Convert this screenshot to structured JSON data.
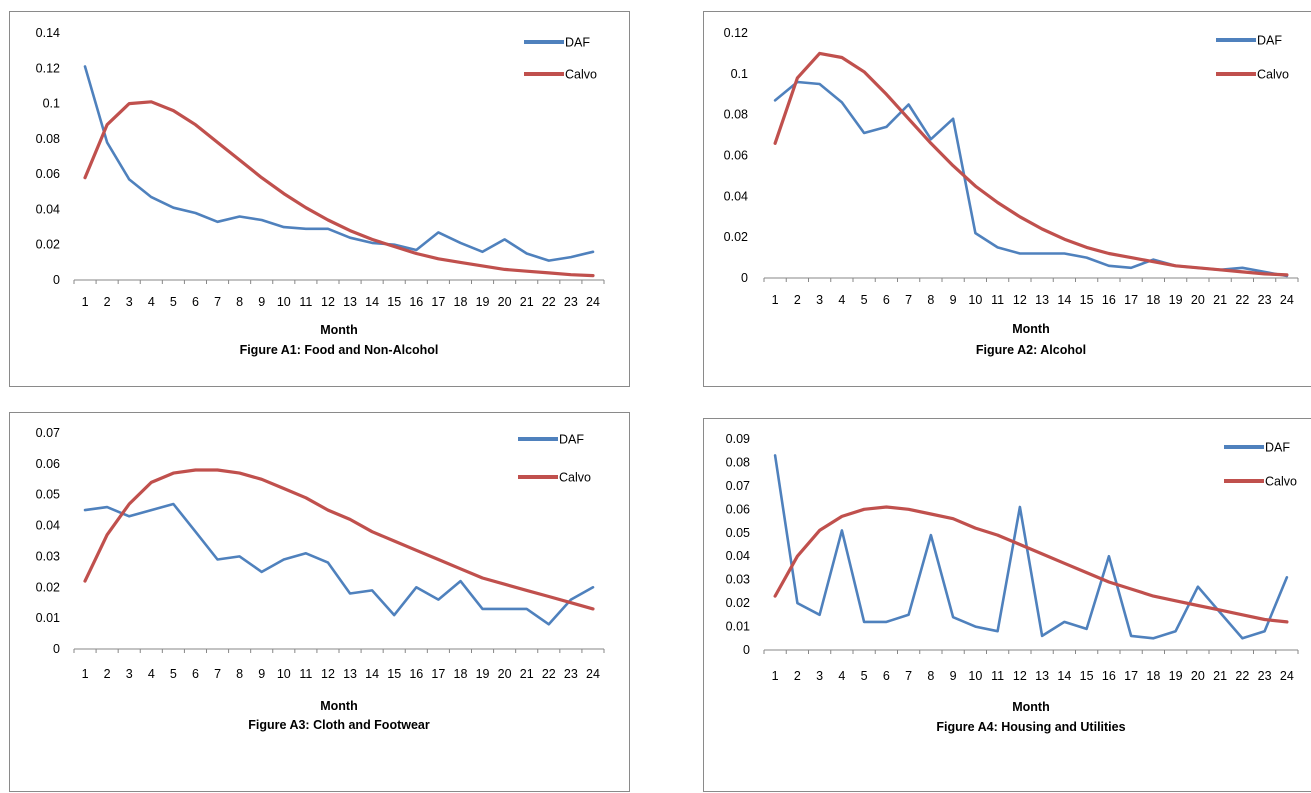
{
  "chart_data": [
    {
      "type": "line",
      "caption": "Figure A1: Food and Non-Alcohol",
      "xlabel": "Month",
      "ylabel": "",
      "categories": [
        "1",
        "2",
        "3",
        "4",
        "5",
        "6",
        "7",
        "8",
        "9",
        "10",
        "11",
        "12",
        "13",
        "14",
        "15",
        "16",
        "17",
        "18",
        "19",
        "20",
        "21",
        "22",
        "23",
        "24"
      ],
      "yticks": [
        "0",
        "0.02",
        "0.04",
        "0.06",
        "0.08",
        "0.1",
        "0.12",
        "0.14"
      ],
      "ylim": [
        0,
        0.14
      ],
      "grid": false,
      "legend_position": "top-right",
      "series": [
        {
          "name": "DAF",
          "color": "#4f81bd",
          "values": [
            0.121,
            0.078,
            0.057,
            0.047,
            0.041,
            0.038,
            0.033,
            0.036,
            0.034,
            0.03,
            0.029,
            0.029,
            0.024,
            0.021,
            0.02,
            0.017,
            0.027,
            0.021,
            0.016,
            0.023,
            0.015,
            0.011,
            0.013,
            0.016
          ]
        },
        {
          "name": "Calvo",
          "color": "#c0504d",
          "values": [
            0.058,
            0.088,
            0.1,
            0.101,
            0.096,
            0.088,
            0.078,
            0.068,
            0.058,
            0.049,
            0.041,
            0.034,
            0.028,
            0.023,
            0.019,
            0.015,
            0.012,
            0.01,
            0.008,
            0.006,
            0.005,
            0.004,
            0.003,
            0.0025
          ]
        }
      ]
    },
    {
      "type": "line",
      "caption": "Figure A2: Alcohol",
      "xlabel": "Month",
      "ylabel": "",
      "categories": [
        "1",
        "2",
        "3",
        "4",
        "5",
        "6",
        "7",
        "8",
        "9",
        "10",
        "11",
        "12",
        "13",
        "14",
        "15",
        "16",
        "17",
        "18",
        "19",
        "20",
        "21",
        "22",
        "23",
        "24"
      ],
      "yticks": [
        "0",
        "0.02",
        "0.04",
        "0.06",
        "0.08",
        "0.1",
        "0.12"
      ],
      "ylim": [
        0,
        0.12
      ],
      "grid": false,
      "legend_position": "top-right",
      "series": [
        {
          "name": "DAF",
          "color": "#4f81bd",
          "values": [
            0.087,
            0.096,
            0.095,
            0.086,
            0.071,
            0.074,
            0.085,
            0.068,
            0.078,
            0.022,
            0.015,
            0.012,
            0.012,
            0.012,
            0.01,
            0.006,
            0.005,
            0.009,
            0.006,
            0.005,
            0.004,
            0.005,
            0.003,
            0.001
          ]
        },
        {
          "name": "Calvo",
          "color": "#c0504d",
          "values": [
            0.066,
            0.098,
            0.11,
            0.108,
            0.101,
            0.09,
            0.078,
            0.066,
            0.055,
            0.045,
            0.037,
            0.03,
            0.024,
            0.019,
            0.015,
            0.012,
            0.01,
            0.008,
            0.006,
            0.005,
            0.004,
            0.003,
            0.002,
            0.0015
          ]
        }
      ]
    },
    {
      "type": "line",
      "caption": "Figure A3: Cloth and Footwear",
      "xlabel": "Month",
      "ylabel": "",
      "categories": [
        "1",
        "2",
        "3",
        "4",
        "5",
        "6",
        "7",
        "8",
        "9",
        "10",
        "11",
        "12",
        "13",
        "14",
        "15",
        "16",
        "17",
        "18",
        "19",
        "20",
        "21",
        "22",
        "23",
        "24"
      ],
      "yticks": [
        "0",
        "0.01",
        "0.02",
        "0.03",
        "0.04",
        "0.05",
        "0.06",
        "0.07"
      ],
      "ylim": [
        0,
        0.07
      ],
      "grid": false,
      "legend_position": "top-right",
      "series": [
        {
          "name": "DAF",
          "color": "#4f81bd",
          "values": [
            0.045,
            0.046,
            0.043,
            0.045,
            0.047,
            0.038,
            0.029,
            0.03,
            0.025,
            0.029,
            0.031,
            0.028,
            0.018,
            0.019,
            0.011,
            0.02,
            0.016,
            0.022,
            0.013,
            0.013,
            0.013,
            0.008,
            0.016,
            0.02
          ]
        },
        {
          "name": "Calvo",
          "color": "#c0504d",
          "values": [
            0.022,
            0.037,
            0.047,
            0.054,
            0.057,
            0.058,
            0.058,
            0.057,
            0.055,
            0.052,
            0.049,
            0.045,
            0.042,
            0.038,
            0.035,
            0.032,
            0.029,
            0.026,
            0.023,
            0.021,
            0.019,
            0.017,
            0.015,
            0.013
          ]
        }
      ]
    },
    {
      "type": "line",
      "caption": "Figure A4: Housing and Utilities",
      "xlabel": "Month",
      "ylabel": "",
      "categories": [
        "1",
        "2",
        "3",
        "4",
        "5",
        "6",
        "7",
        "8",
        "9",
        "10",
        "11",
        "12",
        "13",
        "14",
        "15",
        "16",
        "17",
        "18",
        "19",
        "20",
        "21",
        "22",
        "23",
        "24"
      ],
      "yticks": [
        "0",
        "0.01",
        "0.02",
        "0.03",
        "0.04",
        "0.05",
        "0.06",
        "0.07",
        "0.08",
        "0.09"
      ],
      "ylim": [
        0,
        0.09
      ],
      "grid": false,
      "legend_position": "top-right",
      "series": [
        {
          "name": "DAF",
          "color": "#4f81bd",
          "values": [
            0.083,
            0.02,
            0.015,
            0.051,
            0.012,
            0.012,
            0.015,
            0.049,
            0.014,
            0.01,
            0.008,
            0.061,
            0.006,
            0.012,
            0.009,
            0.04,
            0.006,
            0.005,
            0.008,
            0.027,
            0.016,
            0.005,
            0.008,
            0.031
          ]
        },
        {
          "name": "Calvo",
          "color": "#c0504d",
          "values": [
            0.023,
            0.04,
            0.051,
            0.057,
            0.06,
            0.061,
            0.06,
            0.058,
            0.056,
            0.052,
            0.049,
            0.045,
            0.041,
            0.037,
            0.033,
            0.029,
            0.026,
            0.023,
            0.021,
            0.019,
            0.017,
            0.015,
            0.013,
            0.012
          ]
        }
      ]
    }
  ]
}
